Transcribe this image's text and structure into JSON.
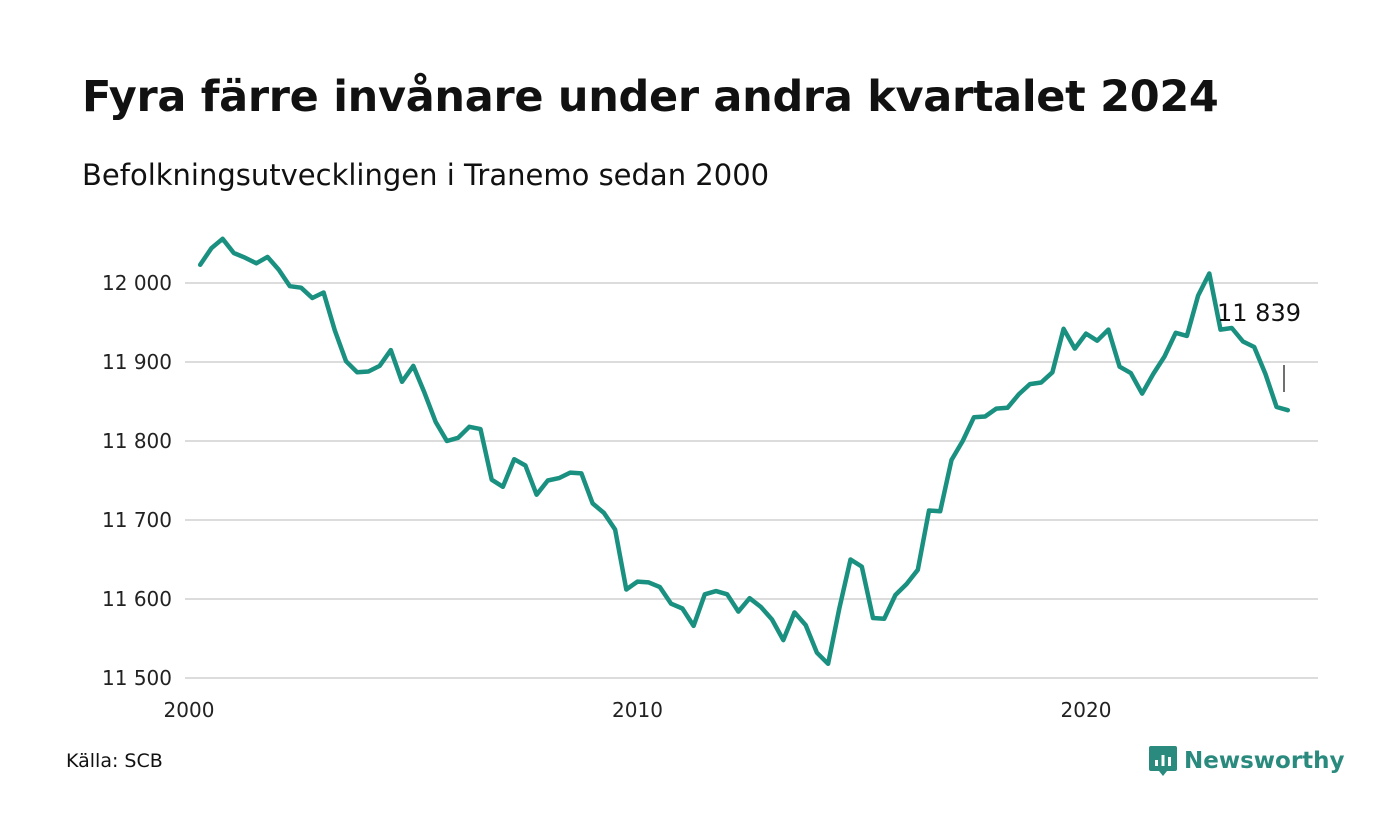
{
  "title": "Fyra färre invånare under andra kvartalet 2024",
  "subtitle": "Befolkningsutvecklingen i Tranemo sedan 2000",
  "source": "Källa: SCB",
  "brand": "Newsworthy",
  "colors": {
    "line": "#1a9080",
    "grid": "#dcdcdc",
    "brand": "#2a8a7e"
  },
  "chart_data": {
    "type": "line",
    "title": "Fyra färre invånare under andra kvartalet 2024",
    "subtitle": "Befolkningsutvecklingen i Tranemo sedan 2000",
    "xlabel": "",
    "ylabel": "",
    "xlim": [
      2000,
      2025.3
    ],
    "ylim": [
      11500,
      12040
    ],
    "yticks": [
      11500,
      11600,
      11700,
      11800,
      11900,
      12000
    ],
    "ytick_labels": [
      "11 500",
      "11 600",
      "11 700",
      "11 800",
      "11 900",
      "12 000"
    ],
    "xticks": [
      2000,
      2010,
      2020
    ],
    "xtick_labels": [
      "2000",
      "2010",
      "2020"
    ],
    "grid": true,
    "end_label": "11 839",
    "series": [
      {
        "x": [
          2000.25,
          2000.5,
          2000.75,
          2001.0,
          2001.25,
          2001.5,
          2001.75,
          2002.0,
          2002.25,
          2002.5,
          2002.75,
          2003.0,
          2003.25,
          2003.5,
          2003.75,
          2004.0,
          2004.25,
          2004.5,
          2004.75,
          2005.0,
          2005.25,
          2005.5,
          2005.75,
          2006.0,
          2006.25,
          2006.5,
          2006.75,
          2007.0,
          2007.25,
          2007.5,
          2007.75,
          2008.0,
          2008.25,
          2008.5,
          2008.75,
          2009.0,
          2009.25,
          2009.5,
          2009.75,
          2010.0,
          2010.25,
          2010.5,
          2010.75,
          2011.0,
          2011.25,
          2011.5,
          2011.75,
          2012.0,
          2012.25,
          2012.5,
          2012.75,
          2013.0,
          2013.25,
          2013.5,
          2013.75,
          2014.0,
          2014.25,
          2014.5,
          2014.75,
          2015.0,
          2015.25,
          2015.5,
          2015.75,
          2016.0,
          2016.25,
          2016.5,
          2016.75,
          2017.0,
          2017.25,
          2017.5,
          2017.75,
          2018.0,
          2018.25,
          2018.5,
          2018.75,
          2019.0,
          2019.25,
          2019.5,
          2019.75,
          2020.0,
          2020.25,
          2020.5,
          2020.75,
          2021.0,
          2021.25,
          2021.5,
          2021.75,
          2022.0,
          2022.25,
          2022.5,
          2022.75,
          2023.0,
          2023.25,
          2023.5,
          2023.75,
          2024.0,
          2024.25,
          2024.5
        ],
        "values": [
          12023,
          12044,
          12056,
          12038,
          12032,
          12025,
          12033,
          12017,
          11996,
          11994,
          11981,
          11988,
          11940,
          11901,
          11887,
          11888,
          11895,
          11915,
          11875,
          11895,
          11861,
          11824,
          11800,
          11804,
          11818,
          11815,
          11751,
          11742,
          11777,
          11769,
          11732,
          11750,
          11753,
          11760,
          11759,
          11721,
          11709,
          11688,
          11612,
          11622,
          11621,
          11615,
          11594,
          11588,
          11566,
          11606,
          11610,
          11606,
          11584,
          11601,
          11590,
          11574,
          11548,
          11583,
          11567,
          11532,
          11518,
          11588,
          11650,
          11641,
          11576,
          11575,
          11605,
          11619,
          11637,
          11712,
          11711,
          11776,
          11800,
          11830,
          11831,
          11841,
          11842,
          11859,
          11872,
          11874,
          11887,
          11942,
          11917,
          11936,
          11927,
          11941,
          11894,
          11886,
          11860,
          11885,
          11907,
          11937,
          11933,
          11984,
          12012,
          11941,
          11943,
          11926,
          11919,
          11885,
          11843,
          11839
        ]
      }
    ]
  }
}
